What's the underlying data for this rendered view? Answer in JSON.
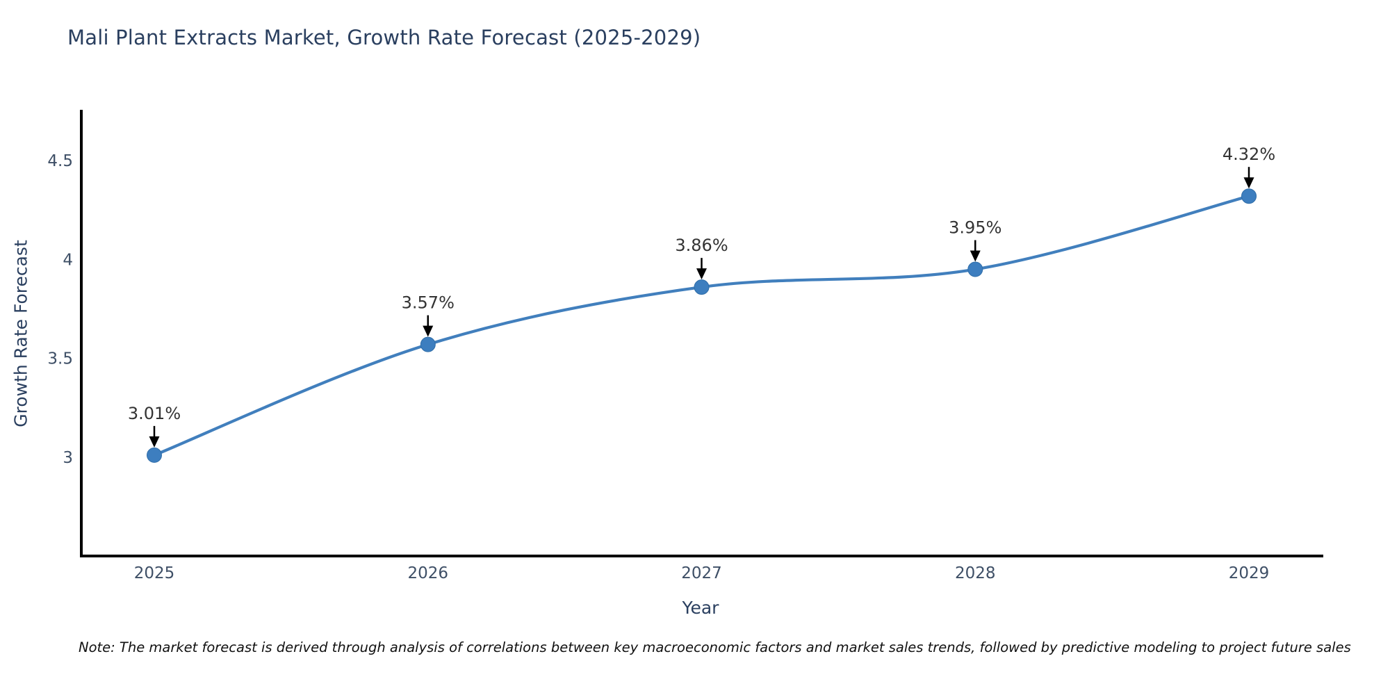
{
  "note": "Note: The market forecast is derived through analysis of correlations between key macroeconomic factors and market sales trends, followed by predictive modeling to project future sales",
  "chart_data": {
    "type": "line",
    "title": "Mali Plant Extracts Market, Growth Rate Forecast (2025-2029)",
    "xlabel": "Year",
    "ylabel": "Growth Rate Forecast",
    "x": [
      "2025",
      "2026",
      "2027",
      "2028",
      "2029"
    ],
    "series": [
      {
        "name": "Growth Rate Forecast",
        "values": [
          3.01,
          3.57,
          3.86,
          3.95,
          4.32
        ]
      }
    ],
    "point_labels": [
      "3.01%",
      "3.57%",
      "3.86%",
      "3.95%",
      "4.32%"
    ],
    "yticks": [
      3,
      3.5,
      4,
      4.5
    ],
    "ylim": [
      2.5,
      4.82
    ],
    "grid": false,
    "legend_position": "none",
    "line_shape": "spline",
    "colors": {
      "line": "#417fbd",
      "marker": "#3d7ebf",
      "marker_edge": "#2f6da8",
      "axis": "#000000",
      "tick": "#3e4f66",
      "title": "#2a3f5f",
      "annotation": "#333333",
      "annotation_arrow": "#000000",
      "background": "#ffffff"
    }
  }
}
